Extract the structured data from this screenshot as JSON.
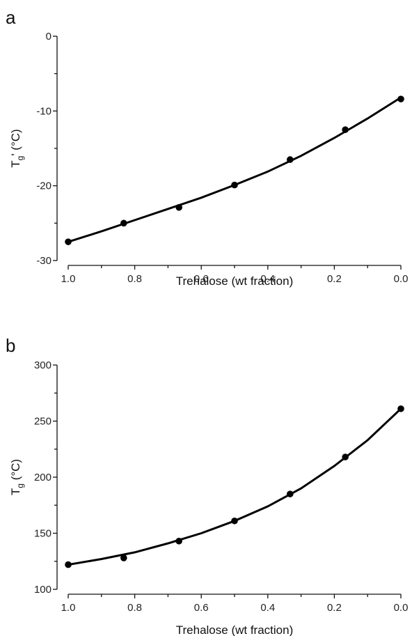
{
  "chart_data": [
    {
      "panel": "a",
      "type": "scatter",
      "xlabel": "Trehalose (wt fraction)",
      "ylabel_main": "T",
      "ylabel_sub": "g",
      "ylabel_tail": "' (°C)",
      "x_reversed": true,
      "xlim": [
        1.0,
        0.0
      ],
      "ylim": [
        -30,
        0
      ],
      "xticks": [
        1.0,
        0.8,
        0.6,
        0.4,
        0.2,
        0.0
      ],
      "xtick_labels": [
        "1.0",
        "0.8",
        "0.6",
        "0.4",
        "0.2",
        "0.0"
      ],
      "yticks": [
        -30,
        -20,
        -10,
        0
      ],
      "ytick_labels": [
        "-30",
        "-20",
        "-10",
        "0"
      ],
      "minor_yticks": true,
      "points": {
        "x": [
          1.0,
          0.833,
          0.667,
          0.5,
          0.333,
          0.167,
          0.0
        ],
        "y": [
          -27.5,
          -25.0,
          -22.9,
          -19.9,
          -16.5,
          -12.5,
          -8.4
        ]
      },
      "fit": {
        "x": [
          1.0,
          0.9,
          0.8,
          0.7,
          0.6,
          0.5,
          0.4,
          0.3,
          0.2,
          0.1,
          0.0
        ],
        "y": [
          -27.5,
          -26.1,
          -24.6,
          -23.1,
          -21.6,
          -19.9,
          -18.1,
          -16.0,
          -13.6,
          -11.0,
          -8.2
        ]
      }
    },
    {
      "panel": "b",
      "type": "scatter",
      "xlabel": "Trehalose (wt fraction)",
      "ylabel_main": "T",
      "ylabel_sub": "g",
      "ylabel_tail": " (°C)",
      "x_reversed": true,
      "xlim": [
        1.0,
        0.0
      ],
      "ylim": [
        100,
        300
      ],
      "xticks": [
        1.0,
        0.8,
        0.6,
        0.4,
        0.2,
        0.0
      ],
      "xtick_labels": [
        "1.0",
        "0.8",
        "0.6",
        "0.4",
        "0.2",
        "0.0"
      ],
      "yticks": [
        100,
        150,
        200,
        250,
        300
      ],
      "ytick_labels": [
        "100",
        "150",
        "200",
        "250",
        "300"
      ],
      "minor_yticks": true,
      "points": {
        "x": [
          1.0,
          0.833,
          0.667,
          0.5,
          0.333,
          0.167,
          0.0
        ],
        "y": [
          122,
          128,
          143,
          161,
          185,
          218,
          261
        ]
      },
      "fit": {
        "x": [
          1.0,
          0.9,
          0.8,
          0.7,
          0.6,
          0.5,
          0.4,
          0.3,
          0.2,
          0.1,
          0.0
        ],
        "y": [
          122,
          127,
          133,
          141,
          150,
          161,
          174,
          190,
          210,
          233,
          261
        ]
      }
    }
  ]
}
